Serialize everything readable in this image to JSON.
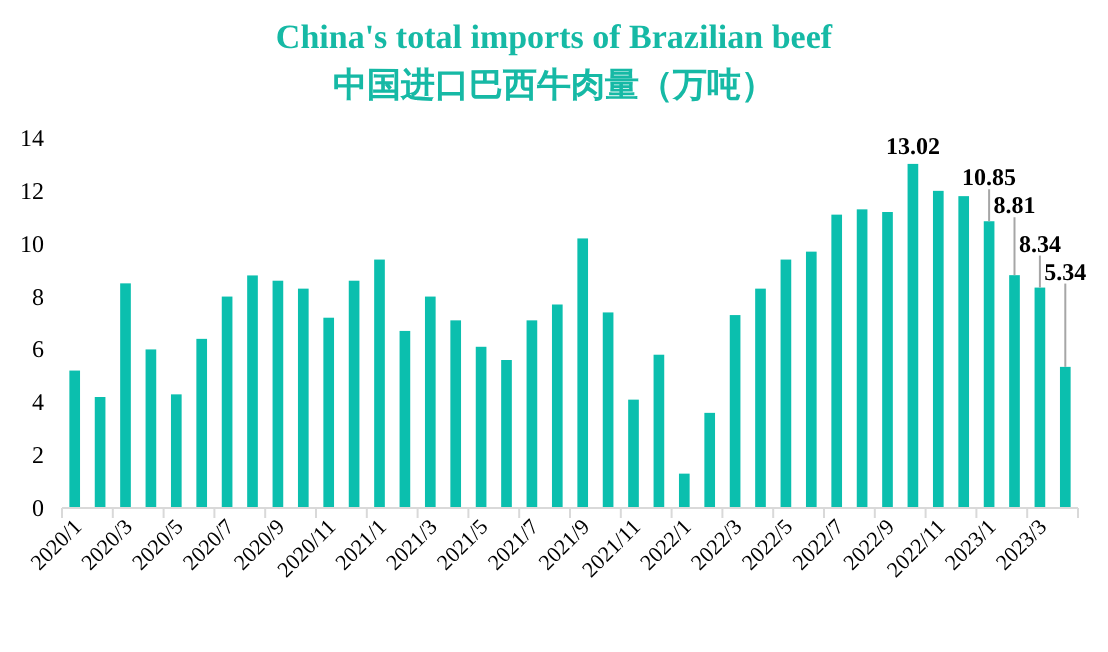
{
  "chart_data": {
    "type": "bar",
    "title": "China's total imports of Brazilian beef",
    "subtitle": "中国进口巴西牛肉量（万吨）",
    "categories": [
      "2020/1",
      null,
      "2020/3",
      null,
      "2020/5",
      null,
      "2020/7",
      null,
      "2020/9",
      null,
      "2020/11",
      null,
      "2021/1",
      null,
      "2021/3",
      null,
      "2021/5",
      null,
      "2021/7",
      null,
      "2021/9",
      null,
      "2021/11",
      null,
      "2022/1",
      null,
      "2022/3",
      null,
      "2022/5",
      null,
      "2022/7",
      null,
      "2022/9",
      null,
      "2022/11",
      null,
      "2023/1",
      null,
      "2023/3",
      null
    ],
    "values": [
      5.2,
      4.2,
      8.5,
      6.0,
      4.3,
      6.4,
      8.0,
      8.8,
      8.6,
      8.3,
      7.2,
      8.6,
      9.4,
      6.7,
      8.0,
      7.1,
      6.1,
      5.6,
      7.1,
      7.7,
      10.2,
      7.4,
      4.1,
      5.8,
      1.3,
      3.6,
      7.3,
      8.3,
      9.4,
      9.7,
      11.1,
      11.3,
      11.2,
      13.02,
      12.0,
      11.8,
      10.85,
      8.81,
      8.34,
      5.34
    ],
    "value_labels": [
      null,
      null,
      null,
      null,
      null,
      null,
      null,
      null,
      null,
      null,
      null,
      null,
      null,
      null,
      null,
      null,
      null,
      null,
      null,
      null,
      null,
      null,
      null,
      null,
      null,
      null,
      null,
      null,
      null,
      null,
      null,
      null,
      null,
      "13.02",
      null,
      null,
      "10.85",
      "8.81",
      "8.34",
      "5.34"
    ],
    "color": "#0bbfae",
    "ylim": [
      0,
      14
    ],
    "yticks": [
      0,
      2,
      4,
      6,
      8,
      10,
      12,
      14
    ]
  }
}
